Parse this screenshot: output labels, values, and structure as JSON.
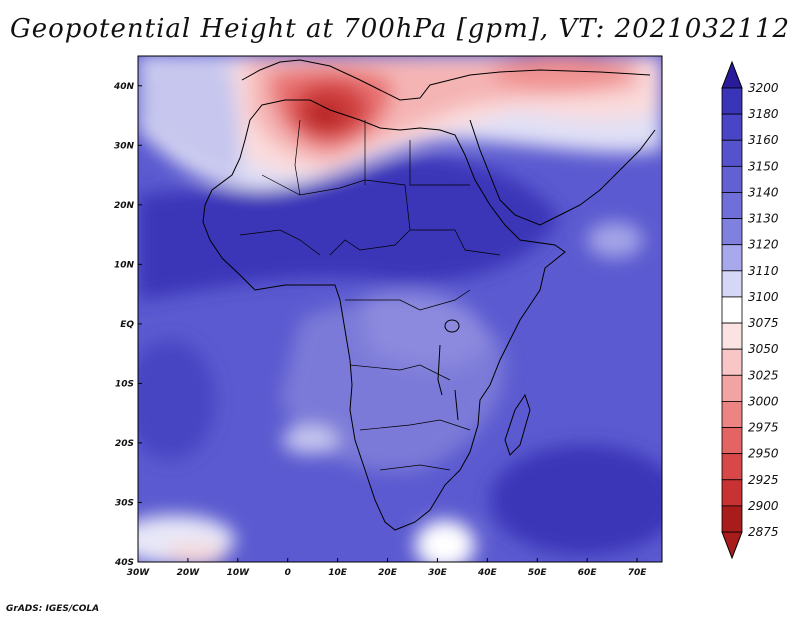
{
  "title": "Geopotential Height at 700hPa [gpm], VT: 2021032112",
  "footer": "GrADS: IGES/COLA",
  "map": {
    "lon_range": [
      -30,
      75
    ],
    "lat_range": [
      -40,
      45
    ],
    "x_ticks": [
      "30W",
      "20W",
      "10W",
      "0",
      "10E",
      "20E",
      "30E",
      "40E",
      "50E",
      "60E",
      "70E"
    ],
    "y_ticks": [
      "40N",
      "30N",
      "20N",
      "10N",
      "EQ",
      "10S",
      "20S",
      "30S",
      "40S"
    ],
    "legend": {
      "levels": [
        "3200",
        "3180",
        "3160",
        "3150",
        "3140",
        "3130",
        "3120",
        "3110",
        "3100",
        "3075",
        "3050",
        "3025",
        "3000",
        "2975",
        "2950",
        "2925",
        "2900",
        "2875"
      ],
      "colors": [
        "#2a1b9a",
        "#3a34b8",
        "#4a44c6",
        "#5652cc",
        "#6260d2",
        "#706ed8",
        "#8080de",
        "#a8a8ec",
        "#d6d6f6",
        "#ffffff",
        "#fbe3e3",
        "#f8c6c6",
        "#f2a4a4",
        "#ec8484",
        "#e46464",
        "#d94848",
        "#c83232",
        "#a81c1c"
      ]
    }
  }
}
